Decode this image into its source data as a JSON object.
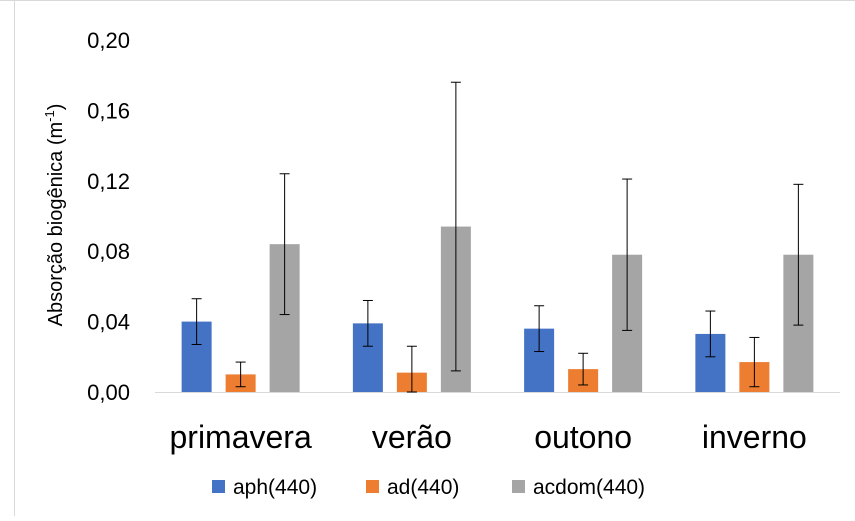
{
  "chart_data": {
    "type": "bar",
    "title": "",
    "xlabel": "",
    "ylabel": "Absorção biogênica (m-1)",
    "ylabel_parts": {
      "base": "Absorção biogênica (m",
      "sup": "-1",
      "close": ")"
    },
    "categories": [
      "primavera",
      "verão",
      "outono",
      "inverno"
    ],
    "ylim": [
      0,
      0.2
    ],
    "yticks": [
      0,
      0.04,
      0.08,
      0.12,
      0.16,
      0.2
    ],
    "ytick_labels": [
      "0,00",
      "0,04",
      "0,08",
      "0,12",
      "0,16",
      "0,20"
    ],
    "grid": false,
    "legend_position": "bottom",
    "series": [
      {
        "name": "aph(440)",
        "color": "#4472C4",
        "values": [
          0.04,
          0.039,
          0.036,
          0.033
        ],
        "error": [
          0.013,
          0.013,
          0.013,
          0.013
        ]
      },
      {
        "name": "ad(440)",
        "color": "#ED7D31",
        "values": [
          0.01,
          0.011,
          0.013,
          0.017
        ],
        "error": [
          0.007,
          0.015,
          0.009,
          0.014
        ]
      },
      {
        "name": "acdom(440)",
        "color": "#A5A5A5",
        "values": [
          0.084,
          0.094,
          0.078,
          0.078
        ],
        "error": [
          0.04,
          0.082,
          0.043,
          0.04
        ]
      }
    ]
  }
}
